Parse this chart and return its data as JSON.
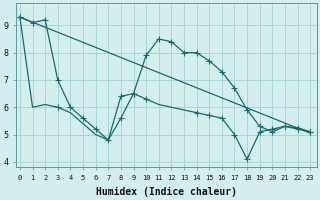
{
  "xlabel": "Humidex (Indice chaleur)",
  "bg_color": "#d4eeee",
  "grid_color": "#aad4d4",
  "line_color": "#1a6b6b",
  "x_ticks": [
    0,
    1,
    2,
    3,
    4,
    5,
    6,
    7,
    8,
    9,
    10,
    11,
    12,
    13,
    14,
    15,
    16,
    17,
    18,
    19,
    20,
    21,
    22,
    23
  ],
  "ylim": [
    3.8,
    9.8
  ],
  "xlim": [
    -0.3,
    23.5
  ],
  "series1_x": [
    0,
    1,
    2,
    3,
    4,
    5,
    6,
    7,
    8,
    9,
    10,
    11,
    12,
    13,
    14,
    15,
    16,
    17,
    18,
    19,
    20,
    21,
    22,
    23
  ],
  "series1_y": [
    9.3,
    9.1,
    9.2,
    7.0,
    6.0,
    5.6,
    5.2,
    4.8,
    5.6,
    6.5,
    7.9,
    8.5,
    8.4,
    8.0,
    8.0,
    7.7,
    7.3,
    6.7,
    5.9,
    5.3,
    5.1,
    5.3,
    5.2,
    5.1
  ],
  "series2_x": [
    0,
    23
  ],
  "series2_y": [
    9.3,
    5.05
  ],
  "series3_x": [
    0,
    1,
    2,
    3,
    4,
    5,
    6,
    7,
    8,
    9,
    10,
    11,
    12,
    13,
    14,
    15,
    16,
    17,
    18,
    19,
    20,
    21,
    22,
    23
  ],
  "series3_y": [
    9.3,
    6.0,
    6.1,
    6.0,
    5.8,
    5.4,
    5.0,
    4.8,
    6.4,
    6.5,
    6.3,
    6.1,
    6.0,
    5.9,
    5.8,
    5.7,
    5.6,
    5.0,
    4.1,
    5.1,
    5.2,
    5.3,
    5.25,
    5.1
  ],
  "series3_markers_x": [
    0,
    3,
    8,
    9,
    10,
    14,
    15,
    16,
    17,
    18,
    19,
    20,
    21,
    22,
    23
  ],
  "series3_markers_y": [
    9.3,
    6.0,
    6.4,
    6.5,
    6.3,
    5.8,
    5.7,
    5.6,
    5.0,
    4.1,
    5.1,
    5.2,
    5.3,
    5.25,
    5.1
  ],
  "linewidth": 0.9,
  "marker_size": 4
}
